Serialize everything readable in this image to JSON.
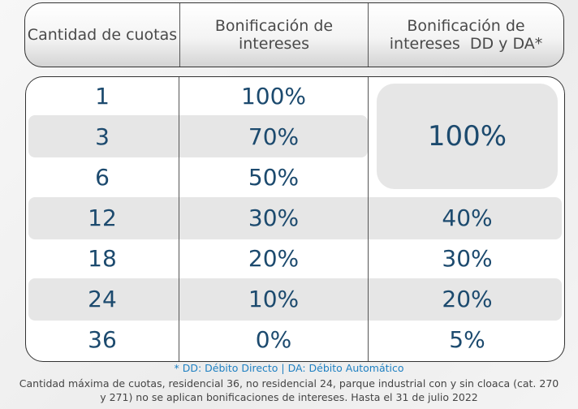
{
  "headers": [
    "Cantidad de cuotas",
    "Bonificación de intereses",
    "Bonificación de intereses  DD y DA*"
  ],
  "rows": [
    {
      "cuotas": "1",
      "bonif": "100%"
    },
    {
      "cuotas": "3",
      "bonif": "70%"
    },
    {
      "cuotas": "6",
      "bonif": "50%"
    },
    {
      "cuotas": "12",
      "bonif": "30%",
      "dd": "40%"
    },
    {
      "cuotas": "18",
      "bonif": "20%",
      "dd": "30%"
    },
    {
      "cuotas": "24",
      "bonif": "10%",
      "dd": "20%"
    },
    {
      "cuotas": "36",
      "bonif": "0%",
      "dd": "5%"
    }
  ],
  "merged_dd": "100%",
  "footnote": "* DD: Débito Directo | DA: Débito Automático",
  "note": "Cantidad máxima de cuotas, residencial 36, no residencial 24, parque industrial con y sin cloaca (cat. 270 y 271) no se aplican bonificaciones de intereses. Hasta el 31 de julio 2022",
  "colors": {
    "value": "#1c4a6e",
    "footnote": "#1f80c2",
    "shade": "#e6e6e6"
  }
}
